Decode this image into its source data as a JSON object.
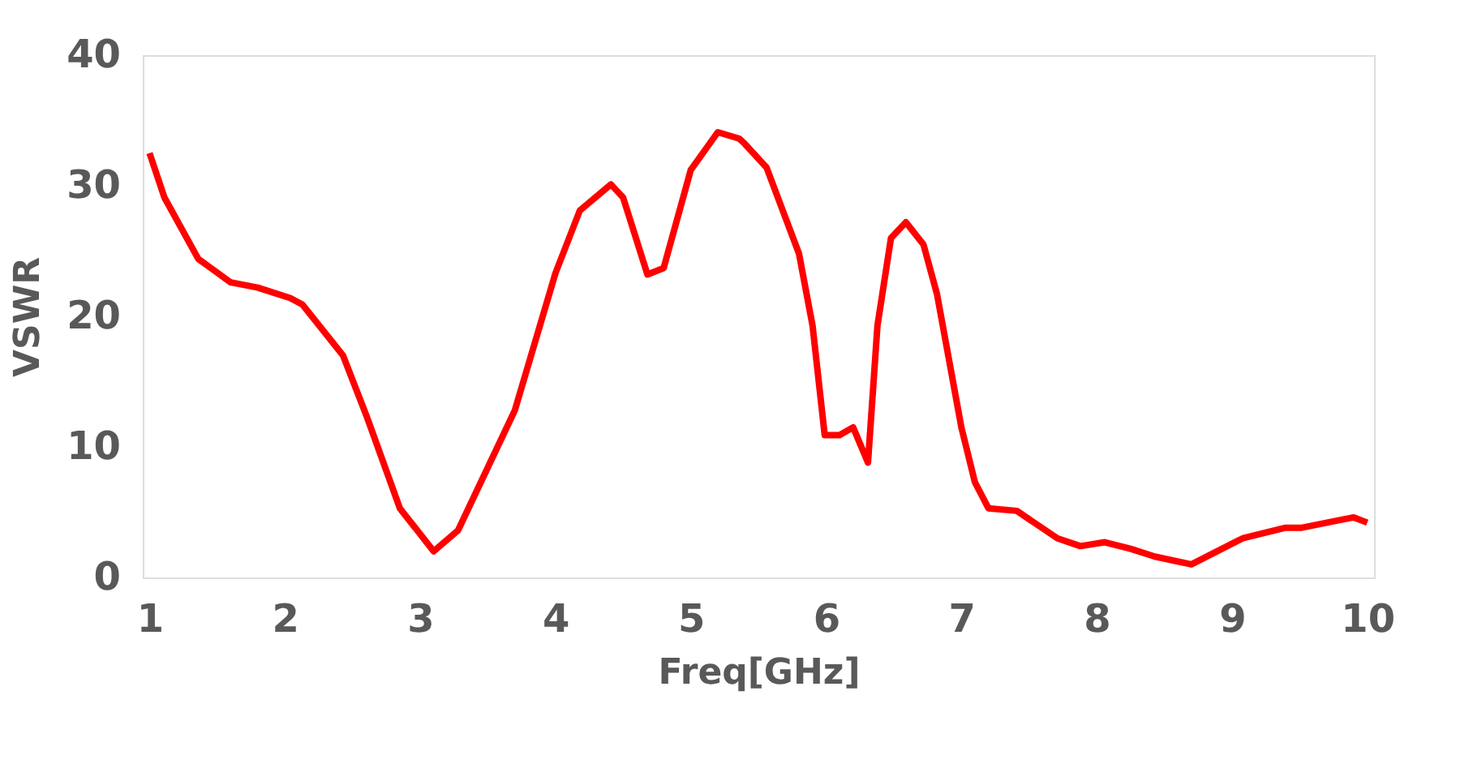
{
  "chart_data": {
    "type": "line",
    "xlabel": "Freq[GHz]",
    "ylabel": "VSWR",
    "x": [
      1.0,
      1.11,
      1.36,
      1.6,
      1.8,
      2.04,
      2.13,
      2.43,
      2.61,
      2.85,
      3.1,
      3.28,
      3.7,
      4.0,
      4.18,
      4.41,
      4.5,
      4.68,
      4.8,
      5.0,
      5.2,
      5.36,
      5.4,
      5.56,
      5.8,
      5.9,
      5.99,
      6.1,
      6.2,
      6.31,
      6.38,
      6.48,
      6.59,
      6.72,
      6.82,
      7.0,
      7.1,
      7.2,
      7.41,
      7.71,
      7.88,
      8.06,
      8.25,
      8.43,
      8.7,
      9.08,
      9.39,
      9.51,
      9.8,
      9.9,
      10.0
    ],
    "series": [
      {
        "color": "#ff0000",
        "values": [
          32.5,
          29.1,
          24.4,
          22.6,
          22.2,
          21.4,
          20.9,
          17.0,
          12.2,
          5.3,
          2.0,
          3.6,
          12.8,
          23.3,
          28.1,
          30.1,
          29.1,
          23.2,
          23.7,
          31.2,
          34.1,
          33.6,
          33.2,
          31.4,
          24.8,
          19.3,
          10.9,
          10.9,
          11.5,
          8.8,
          19.3,
          26.0,
          27.2,
          25.5,
          21.7,
          11.5,
          7.3,
          5.3,
          5.1,
          3.0,
          2.4,
          2.7,
          2.2,
          1.6,
          1.0,
          3.0,
          3.8,
          3.8,
          4.4,
          4.6,
          4.2
        ]
      }
    ],
    "xlim": [
      0.95,
      10.05
    ],
    "xticks": [
      1,
      2,
      3,
      4,
      5,
      6,
      7,
      8,
      9,
      10
    ],
    "ylim": [
      0,
      40
    ],
    "yticks": [
      0,
      10,
      20,
      30,
      40
    ],
    "grid": false,
    "legend": false,
    "marker": "none",
    "line_style": "solid"
  }
}
